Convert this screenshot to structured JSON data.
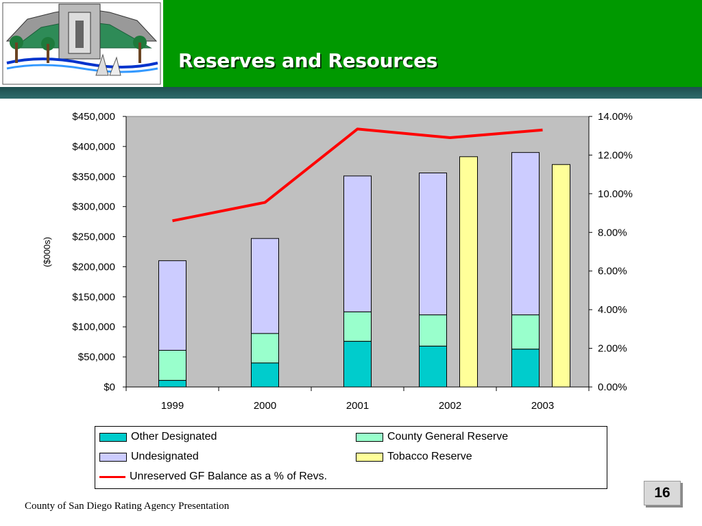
{
  "header": {
    "title": "Reserves and Resources"
  },
  "footer": {
    "text": "County of San Diego Rating Agency Presentation"
  },
  "page_number": "16",
  "colors": {
    "other_designated": "#00cccc",
    "county_general": "#99ffcc",
    "undesignated": "#ccccff",
    "tobacco": "#ffff99",
    "line": "#ff0000",
    "plot_bg": "#c0c0c0"
  },
  "chart_data": {
    "type": "bar",
    "categories": [
      "1999",
      "2000",
      "2001",
      "2002",
      "2003"
    ],
    "ylabel": "($000s)",
    "ylim": [
      0,
      450000
    ],
    "y_ticks": [
      "$0",
      "$50,000",
      "$100,000",
      "$150,000",
      "$200,000",
      "$250,000",
      "$300,000",
      "$350,000",
      "$400,000",
      "$450,000"
    ],
    "y2lim": [
      0,
      14
    ],
    "y2_ticks": [
      "0.00%",
      "2.00%",
      "4.00%",
      "6.00%",
      "8.00%",
      "10.00%",
      "12.00%",
      "14.00%"
    ],
    "stacked_series": [
      {
        "name": "Other Designated",
        "values": [
          11000,
          40000,
          76000,
          68000,
          63000
        ]
      },
      {
        "name": "County General Reserve",
        "values": [
          50000,
          49000,
          49000,
          52000,
          57000
        ]
      },
      {
        "name": "Undesignated",
        "values": [
          149000,
          158000,
          226000,
          236000,
          270000
        ]
      }
    ],
    "side_series": {
      "name": "Tobacco Reserve",
      "values": [
        null,
        null,
        null,
        383000,
        370000
      ]
    },
    "line_series": {
      "name": "Unreserved GF Balance as a % of Revs.",
      "values": [
        8.6,
        9.55,
        13.35,
        12.9,
        13.3
      ]
    },
    "legend_position": "bottom"
  }
}
